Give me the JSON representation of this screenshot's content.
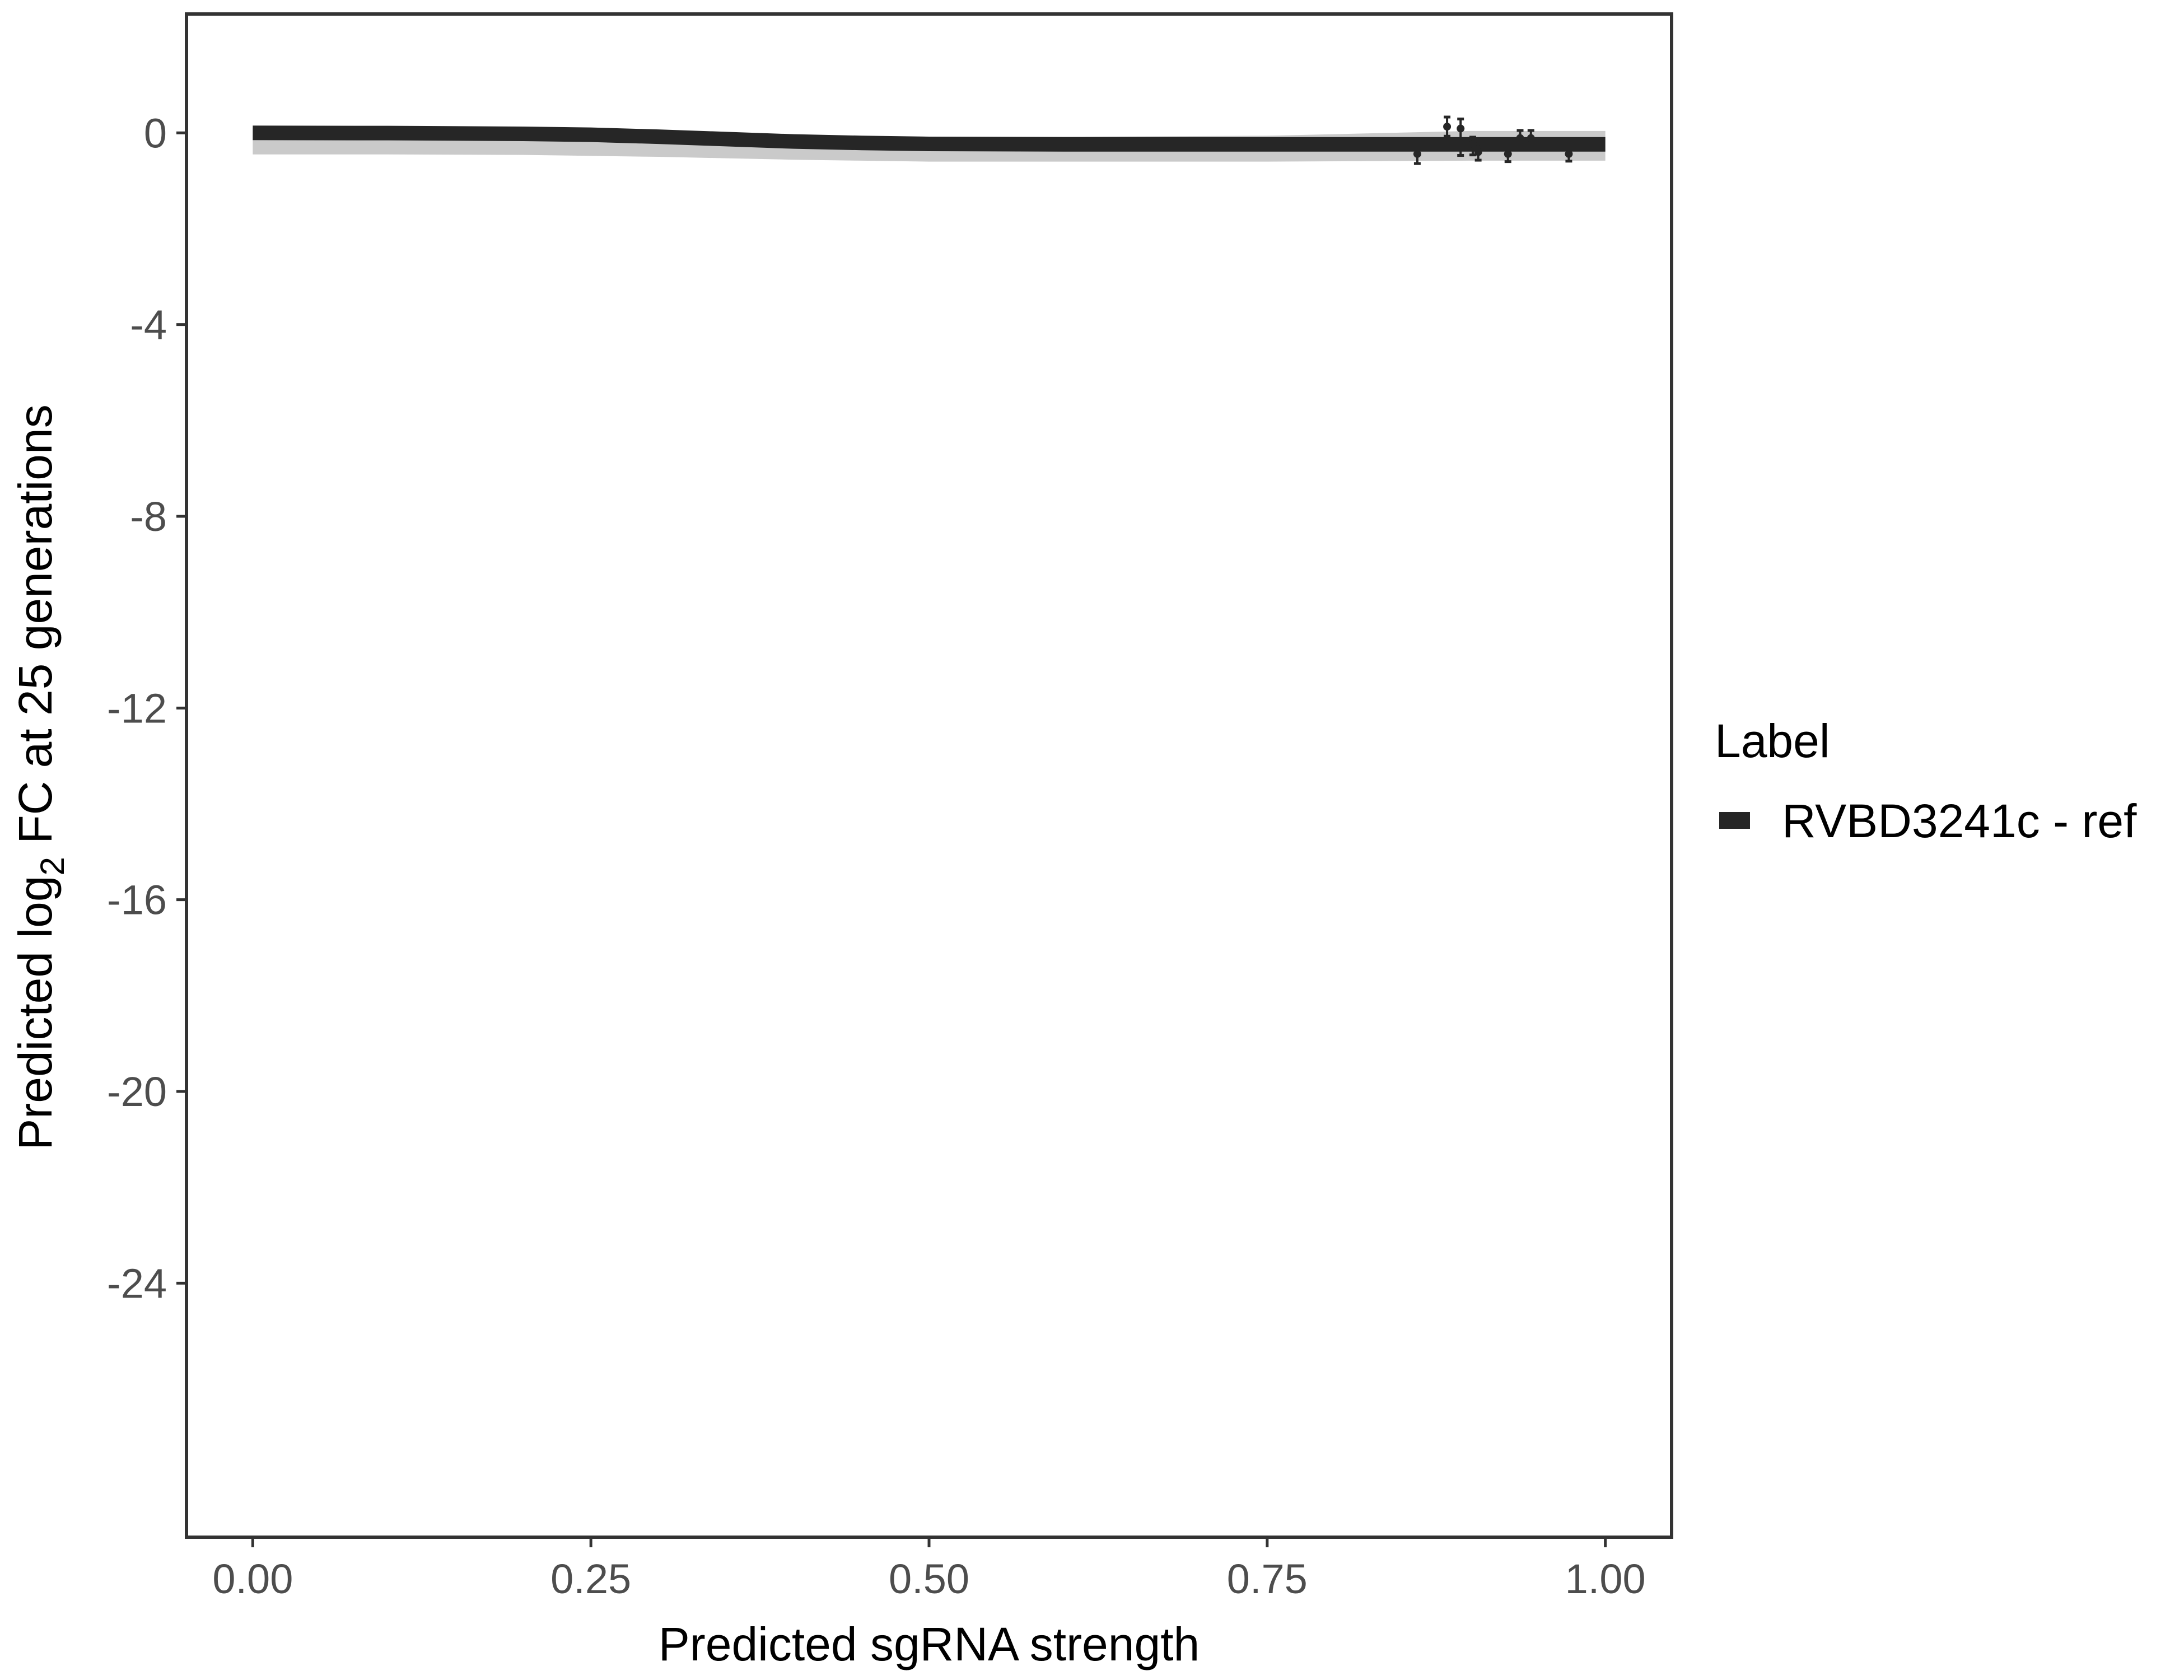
{
  "chart_data": {
    "type": "line",
    "title": "",
    "xlabel": "Predicted sgRNA strength",
    "ylabel": {
      "prefix": "Predicted  log",
      "sub": "2",
      "suffix": " FC at 25 generations"
    },
    "xlim": [
      -0.049,
      1.049
    ],
    "ylim": [
      -29.3,
      2.48
    ],
    "xticks": [
      0,
      0.25,
      0.5,
      0.75,
      1.0
    ],
    "xtick_labels": [
      "0.00",
      "0.25",
      "0.50",
      "0.75",
      "1.00"
    ],
    "yticks": [
      0,
      -4,
      -8,
      -12,
      -16,
      -20,
      -24
    ],
    "ytick_labels": [
      "0",
      "-4",
      "-8",
      "-12",
      "-16",
      "-20",
      "-24"
    ],
    "grid": false,
    "legend": {
      "title": "Label",
      "position": "right",
      "entries": [
        "RVBD3241c - ref"
      ]
    },
    "colors": {
      "line": "#262626",
      "ribbon": "#9e9e9e",
      "axis": "#333333"
    },
    "series": [
      {
        "name": "RVBD3241c - ref",
        "fit": {
          "x": [
            0,
            0.1,
            0.2,
            0.25,
            0.3,
            0.35,
            0.4,
            0.45,
            0.5,
            0.6,
            0.75,
            0.9,
            1.0
          ],
          "y": [
            0,
            -0.005,
            -0.02,
            -0.04,
            -0.08,
            -0.13,
            -0.18,
            -0.21,
            -0.23,
            -0.24,
            -0.24,
            -0.24,
            -0.24
          ],
          "lower": [
            -0.45,
            -0.45,
            -0.46,
            -0.48,
            -0.5,
            -0.53,
            -0.56,
            -0.58,
            -0.6,
            -0.6,
            -0.6,
            -0.58,
            -0.58
          ],
          "upper": [
            0.1,
            0.1,
            0.08,
            0.06,
            0.03,
            -0.01,
            -0.05,
            -0.07,
            -0.08,
            -0.08,
            -0.06,
            0.04,
            0.04
          ]
        },
        "points": [
          {
            "x": 0.861,
            "y": -0.44,
            "ymin": -0.64,
            "ymax": -0.25
          },
          {
            "x": 0.883,
            "y": 0.13,
            "ymin": -0.07,
            "ymax": 0.33
          },
          {
            "x": 0.893,
            "y": 0.09,
            "ymin": -0.47,
            "ymax": 0.29
          },
          {
            "x": 0.902,
            "y": -0.23,
            "ymin": -0.46,
            "ymax": -0.09
          },
          {
            "x": 0.906,
            "y": -0.4,
            "ymin": -0.57,
            "ymax": -0.23
          },
          {
            "x": 0.928,
            "y": -0.44,
            "ymin": -0.6,
            "ymax": -0.28
          },
          {
            "x": 0.937,
            "y": -0.11,
            "ymin": -0.27,
            "ymax": 0.05
          },
          {
            "x": 0.945,
            "y": -0.11,
            "ymin": -0.27,
            "ymax": 0.05
          },
          {
            "x": 0.973,
            "y": -0.44,
            "ymin": -0.59,
            "ymax": -0.28
          }
        ]
      }
    ]
  }
}
